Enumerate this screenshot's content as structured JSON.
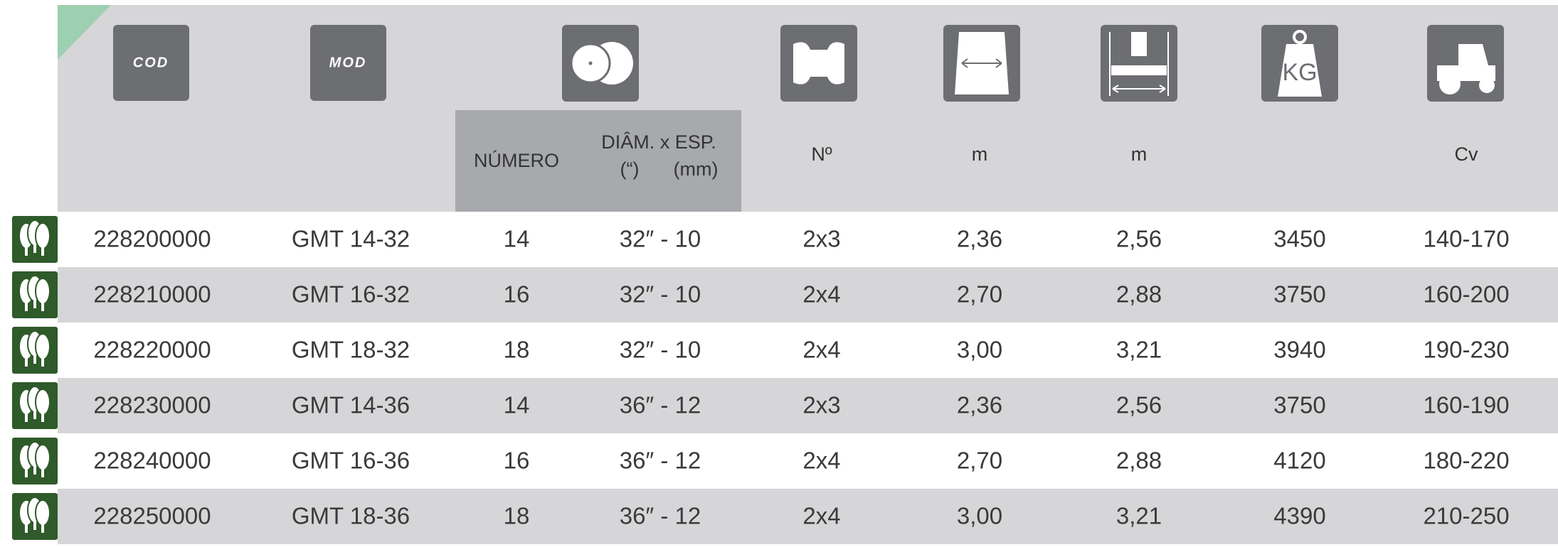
{
  "header": {
    "icon_labels": {
      "cod": "COD",
      "mod": "MOD",
      "kg": "KG"
    },
    "subheaders": {
      "numero": "NÚMERO",
      "diam_1": "DIÂM. x ESP.",
      "diam_2a": "(“)",
      "diam_2b": "(mm)",
      "n": "Nº",
      "m_1": "m",
      "m_2": "m",
      "cv": "Cv"
    }
  },
  "table": {
    "rows": [
      [
        "228200000",
        "GMT 14-32",
        "14",
        "32″ - 10",
        "2x3",
        "2,36",
        "2,56",
        "3450",
        "140-170"
      ],
      [
        "228210000",
        "GMT 16-32",
        "16",
        "32″ - 10",
        "2x4",
        "2,70",
        "2,88",
        "3750",
        "160-200"
      ],
      [
        "228220000",
        "GMT 18-32",
        "18",
        "32″ - 10",
        "2x4",
        "3,00",
        "3,21",
        "3940",
        "190-230"
      ],
      [
        "228230000",
        "GMT 14-36",
        "14",
        "36″ - 12",
        "2x3",
        "2,36",
        "2,56",
        "3750",
        "160-190"
      ],
      [
        "228240000",
        "GMT 16-36",
        "16",
        "36″ - 12",
        "2x4",
        "2,70",
        "2,88",
        "4120",
        "180-220"
      ],
      [
        "228250000",
        "GMT 18-36",
        "18",
        "36″ - 12",
        "2x4",
        "3,00",
        "3,21",
        "4390",
        "210-250"
      ]
    ]
  }
}
